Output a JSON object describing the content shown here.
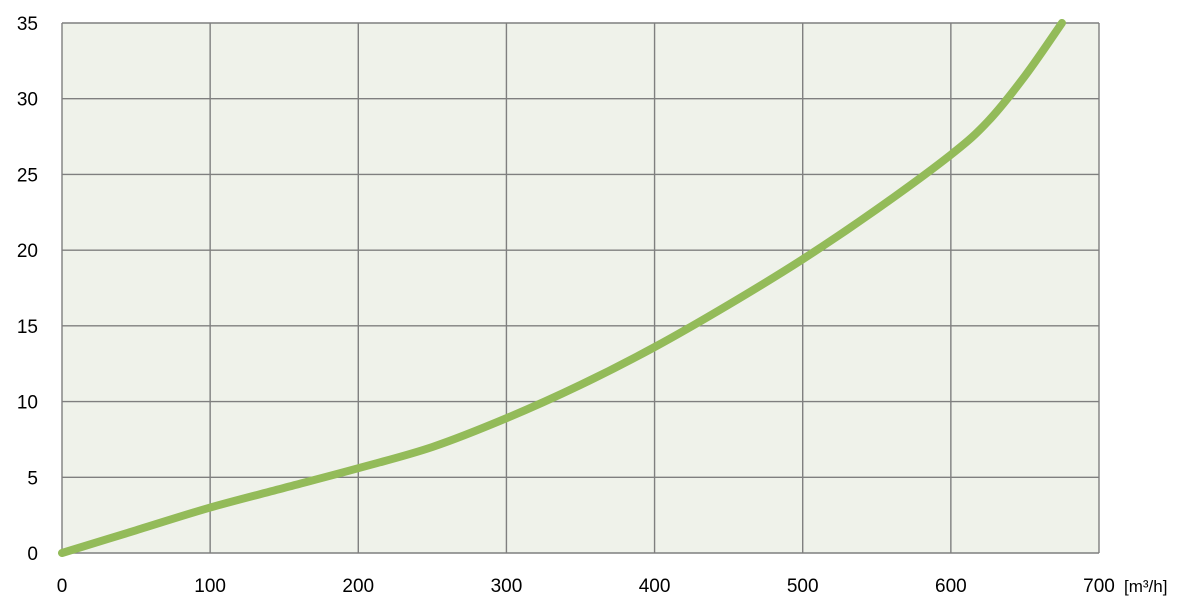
{
  "chart_data": {
    "type": "line",
    "title": "",
    "xlabel": "",
    "ylabel": "",
    "x_unit": "[m³/h]",
    "xlim": [
      0,
      700
    ],
    "ylim": [
      0,
      35
    ],
    "x_ticks": [
      0,
      100,
      200,
      300,
      400,
      500,
      600,
      700
    ],
    "y_ticks": [
      0,
      5,
      10,
      15,
      20,
      25,
      30,
      35
    ],
    "grid": true,
    "legend": "none",
    "colors": {
      "plot_background": "#eff2ea",
      "grid": "#7f7f7f",
      "line": "#93bb59"
    },
    "series": [
      {
        "x": [
          0,
          50,
          100,
          150,
          200,
          250,
          300,
          350,
          400,
          450,
          500,
          550,
          600,
          625,
          650,
          675
        ],
        "y": [
          0,
          1.5,
          3.0,
          4.3,
          5.6,
          7.0,
          8.9,
          11.1,
          13.6,
          16.4,
          19.4,
          22.7,
          26.3,
          28.5,
          31.5,
          35.0
        ]
      }
    ]
  }
}
